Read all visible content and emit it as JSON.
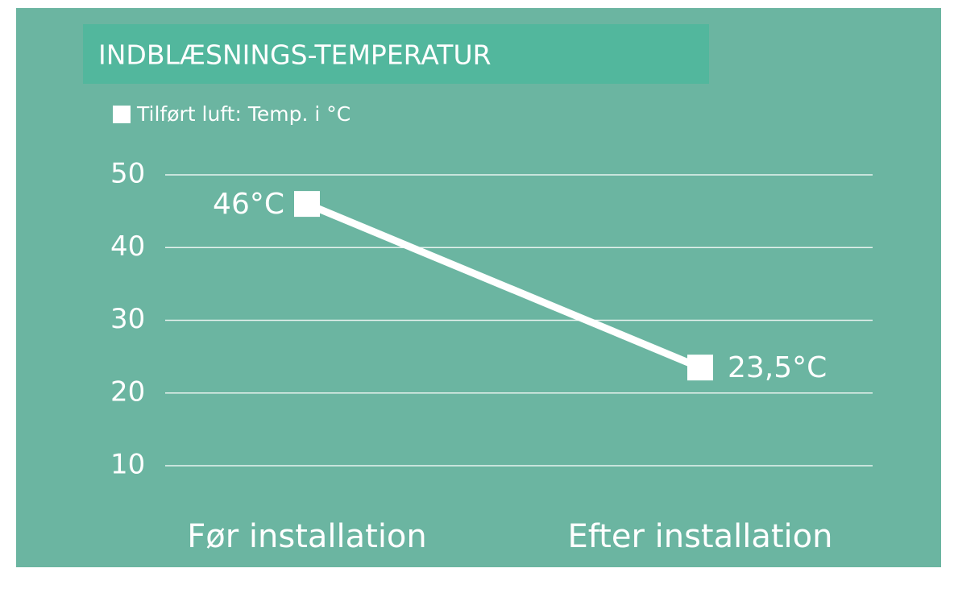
{
  "chart_data": {
    "type": "line",
    "title": "INDBLÆSNINGS-TEMPERATUR",
    "categories": [
      "Før installation",
      "Efter installation"
    ],
    "series": [
      {
        "name": "Tilført luft: Temp. i °C",
        "color": "#ffffff",
        "values": [
          46,
          23.5
        ],
        "value_labels": [
          "46°C",
          "23,5°C"
        ]
      }
    ],
    "ylim": [
      10,
      50
    ],
    "yticks": [
      10,
      20,
      30,
      40,
      50
    ],
    "grid": true
  }
}
